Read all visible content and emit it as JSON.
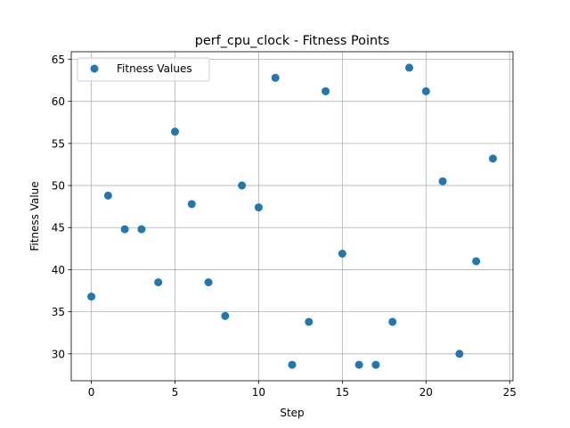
{
  "chart_data": {
    "type": "scatter",
    "title": "perf_cpu_clock - Fitness Points",
    "xlabel": "Step",
    "ylabel": "Fitness Value",
    "xlim": [
      -1.2,
      25.2
    ],
    "ylim": [
      26.8,
      65.9
    ],
    "xticks": [
      0,
      5,
      10,
      15,
      20,
      25
    ],
    "yticks": [
      30,
      35,
      40,
      45,
      50,
      55,
      60,
      65
    ],
    "grid": true,
    "legend_position": "top-left",
    "series": [
      {
        "name": "Fitness Values",
        "color": "#1f77b4",
        "x": [
          0,
          1,
          2,
          3,
          4,
          5,
          6,
          7,
          8,
          9,
          10,
          11,
          12,
          13,
          14,
          15,
          16,
          17,
          18,
          19,
          20,
          21,
          22,
          23,
          24
        ],
        "y": [
          36.8,
          48.8,
          44.8,
          44.8,
          38.5,
          56.4,
          47.8,
          38.5,
          34.5,
          50.0,
          47.4,
          62.8,
          28.7,
          33.8,
          61.2,
          41.9,
          28.7,
          28.7,
          33.8,
          64.0,
          61.2,
          50.5,
          30.0,
          41.0,
          53.2
        ]
      }
    ]
  }
}
